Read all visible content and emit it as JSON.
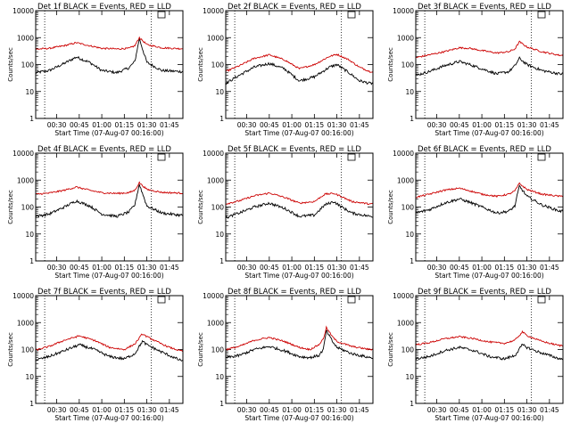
{
  "colors": {
    "events": "#000000",
    "lld": "#cc0000",
    "axes": "#000000",
    "background": "#ffffff"
  },
  "chart_data": [
    {
      "type": "line",
      "title": "Det 1f BLACK = Events, RED = LLD",
      "xlabel": "Start Time (07-Aug-07 00:16:00)",
      "ylabel": "Counts/sec",
      "yscale": "log",
      "ylim": [
        1,
        10000
      ],
      "xlim": [
        "00:16",
        "01:54"
      ],
      "xticks": [
        "00:30",
        "00:45",
        "01:00",
        "01:15",
        "01:30",
        "01:45"
      ],
      "yticks": [
        "1",
        "10",
        "100",
        "1000",
        "10000"
      ],
      "vlines": [
        "00:22",
        "01:33"
      ],
      "x": [
        "00:16",
        "00:25",
        "00:35",
        "00:43",
        "00:52",
        "01:00",
        "01:10",
        "01:18",
        "01:22",
        "01:25",
        "01:30",
        "01:40",
        "01:52"
      ],
      "series": [
        {
          "name": "Events",
          "color": "#000000",
          "values": [
            50,
            60,
            110,
            190,
            120,
            60,
            50,
            75,
            130,
            900,
            120,
            60,
            55
          ]
        },
        {
          "name": "LLD",
          "color": "#cc0000",
          "values": [
            370,
            400,
            500,
            650,
            500,
            400,
            380,
            400,
            500,
            1000,
            550,
            420,
            390
          ]
        }
      ]
    },
    {
      "type": "line",
      "title": "Det 2f BLACK = Events, RED = LLD",
      "xlabel": "Start Time (07-Aug-07 00:16:00)",
      "ylabel": "Counts/sec",
      "yscale": "log",
      "ylim": [
        1,
        10000
      ],
      "xlim": [
        "00:16",
        "01:54"
      ],
      "xticks": [
        "00:30",
        "00:45",
        "01:00",
        "01:15",
        "01:30",
        "01:45"
      ],
      "yticks": [
        "1",
        "10",
        "100",
        "1000",
        "10000"
      ],
      "vlines": [
        "00:22",
        "01:33"
      ],
      "x": [
        "00:16",
        "00:25",
        "00:35",
        "00:45",
        "00:55",
        "01:05",
        "01:15",
        "01:25",
        "01:30",
        "01:38",
        "01:45",
        "01:52"
      ],
      "series": [
        {
          "name": "Events",
          "color": "#000000",
          "values": [
            20,
            40,
            80,
            110,
            70,
            25,
            35,
            80,
            100,
            50,
            25,
            20
          ]
        },
        {
          "name": "LLD",
          "color": "#cc0000",
          "values": [
            55,
            90,
            170,
            230,
            150,
            70,
            100,
            200,
            240,
            150,
            80,
            55
          ]
        }
      ]
    },
    {
      "type": "line",
      "title": "Det 3f BLACK = Events, RED = LLD",
      "xlabel": "Start Time (07-Aug-07 00:16:00)",
      "ylabel": "Counts/sec",
      "yscale": "log",
      "ylim": [
        1,
        10000
      ],
      "xlim": [
        "00:16",
        "01:54"
      ],
      "xticks": [
        "00:30",
        "00:45",
        "01:00",
        "01:15",
        "01:30",
        "01:45"
      ],
      "yticks": [
        "1",
        "10",
        "100",
        "1000",
        "10000"
      ],
      "vlines": [
        "00:22",
        "01:33"
      ],
      "x": [
        "00:16",
        "00:25",
        "00:35",
        "00:45",
        "00:52",
        "01:00",
        "01:10",
        "01:18",
        "01:22",
        "01:25",
        "01:30",
        "01:40",
        "01:52"
      ],
      "series": [
        {
          "name": "Events",
          "color": "#000000",
          "values": [
            40,
            55,
            90,
            130,
            100,
            70,
            45,
            55,
            90,
            170,
            100,
            60,
            45
          ]
        },
        {
          "name": "LLD",
          "color": "#cc0000",
          "values": [
            180,
            230,
            300,
            420,
            400,
            330,
            270,
            300,
            380,
            700,
            450,
            300,
            220
          ]
        }
      ]
    },
    {
      "type": "line",
      "title": "Det 4f BLACK = Events, RED = LLD",
      "xlabel": "Start Time (07-Aug-07 00:16:00)",
      "ylabel": "Counts/sec",
      "yscale": "log",
      "ylim": [
        1,
        10000
      ],
      "xlim": [
        "00:16",
        "01:54"
      ],
      "xticks": [
        "00:30",
        "00:45",
        "01:00",
        "01:15",
        "01:30",
        "01:45"
      ],
      "yticks": [
        "1",
        "10",
        "100",
        "1000",
        "10000"
      ],
      "vlines": [
        "00:22",
        "01:33"
      ],
      "x": [
        "00:16",
        "00:25",
        "00:35",
        "00:43",
        "00:52",
        "01:00",
        "01:10",
        "01:18",
        "01:22",
        "01:25",
        "01:30",
        "01:40",
        "01:52"
      ],
      "series": [
        {
          "name": "Events",
          "color": "#000000",
          "values": [
            45,
            55,
            100,
            170,
            110,
            55,
            45,
            65,
            120,
            700,
            110,
            60,
            50
          ]
        },
        {
          "name": "LLD",
          "color": "#cc0000",
          "values": [
            300,
            330,
            420,
            550,
            420,
            340,
            320,
            340,
            420,
            800,
            450,
            350,
            330
          ]
        }
      ]
    },
    {
      "type": "line",
      "title": "Det 5f BLACK = Events, RED = LLD",
      "xlabel": "Start Time (07-Aug-07 00:16:00)",
      "ylabel": "Counts/sec",
      "yscale": "log",
      "ylim": [
        1,
        10000
      ],
      "xlim": [
        "00:16",
        "01:54"
      ],
      "xticks": [
        "00:30",
        "00:45",
        "01:00",
        "01:15",
        "01:30",
        "01:45"
      ],
      "yticks": [
        "1",
        "10",
        "100",
        "1000",
        "10000"
      ],
      "vlines": [
        "00:22",
        "01:33"
      ],
      "x": [
        "00:16",
        "00:25",
        "00:35",
        "00:45",
        "00:55",
        "01:05",
        "01:15",
        "01:22",
        "01:28",
        "01:32",
        "01:40",
        "01:52"
      ],
      "series": [
        {
          "name": "Events",
          "color": "#000000",
          "values": [
            40,
            60,
            100,
            140,
            90,
            45,
            50,
            120,
            160,
            110,
            60,
            45
          ]
        },
        {
          "name": "LLD",
          "color": "#cc0000",
          "values": [
            130,
            170,
            260,
            330,
            230,
            140,
            160,
            300,
            320,
            260,
            160,
            130
          ]
        }
      ]
    },
    {
      "type": "line",
      "title": "Det 6f BLACK = Events, RED = LLD",
      "xlabel": "Start Time (07-Aug-07 00:16:00)",
      "ylabel": "Counts/sec",
      "yscale": "log",
      "ylim": [
        1,
        10000
      ],
      "xlim": [
        "00:16",
        "01:54"
      ],
      "xticks": [
        "00:30",
        "00:45",
        "01:00",
        "01:15",
        "01:30",
        "01:45"
      ],
      "yticks": [
        "1",
        "10",
        "100",
        "1000",
        "10000"
      ],
      "vlines": [
        "00:22",
        "01:33"
      ],
      "x": [
        "00:16",
        "00:25",
        "00:35",
        "00:45",
        "00:52",
        "01:00",
        "01:10",
        "01:18",
        "01:22",
        "01:25",
        "01:30",
        "01:40",
        "01:52"
      ],
      "series": [
        {
          "name": "Events",
          "color": "#000000",
          "values": [
            60,
            80,
            140,
            200,
            150,
            100,
            60,
            70,
            110,
            600,
            250,
            120,
            70
          ]
        },
        {
          "name": "LLD",
          "color": "#cc0000",
          "values": [
            230,
            300,
            420,
            500,
            400,
            300,
            250,
            300,
            400,
            750,
            450,
            300,
            250
          ]
        }
      ]
    },
    {
      "type": "line",
      "title": "Det 7f BLACK = Events, RED = LLD",
      "xlabel": "Start Time (07-Aug-07 00:16:00)",
      "ylabel": "Counts/sec",
      "yscale": "log",
      "ylim": [
        1,
        10000
      ],
      "xlim": [
        "00:16",
        "01:54"
      ],
      "xticks": [
        "00:30",
        "00:45",
        "01:00",
        "01:15",
        "01:30",
        "01:45"
      ],
      "yticks": [
        "1",
        "10",
        "100",
        "1000",
        "10000"
      ],
      "vlines": [
        "00:22",
        "01:33"
      ],
      "x": [
        "00:16",
        "00:25",
        "00:35",
        "00:45",
        "00:55",
        "01:05",
        "01:15",
        "01:22",
        "01:27",
        "01:30",
        "01:38",
        "01:45",
        "01:52"
      ],
      "series": [
        {
          "name": "Events",
          "color": "#000000",
          "values": [
            40,
            55,
            90,
            150,
            100,
            55,
            45,
            70,
            200,
            150,
            90,
            60,
            40
          ]
        },
        {
          "name": "LLD",
          "color": "#cc0000",
          "values": [
            95,
            130,
            220,
            320,
            220,
            120,
            100,
            160,
            380,
            300,
            180,
            120,
            90
          ]
        }
      ]
    },
    {
      "type": "line",
      "title": "Det 8f BLACK = Events, RED = LLD",
      "xlabel": "Start Time (07-Aug-07 00:16:00)",
      "ylabel": "Counts/sec",
      "yscale": "log",
      "ylim": [
        1,
        10000
      ],
      "xlim": [
        "00:16",
        "01:54"
      ],
      "xticks": [
        "00:30",
        "00:45",
        "01:00",
        "01:15",
        "01:30",
        "01:45"
      ],
      "yticks": [
        "1",
        "10",
        "100",
        "1000",
        "10000"
      ],
      "vlines": [
        "00:22",
        "01:33"
      ],
      "x": [
        "00:16",
        "00:25",
        "00:35",
        "00:45",
        "00:55",
        "01:05",
        "01:12",
        "01:18",
        "01:21",
        "01:23",
        "01:27",
        "01:30",
        "01:40",
        "01:52"
      ],
      "series": [
        {
          "name": "Events",
          "color": "#000000",
          "values": [
            50,
            60,
            100,
            130,
            90,
            55,
            50,
            60,
            100,
            500,
            200,
            120,
            70,
            50
          ]
        },
        {
          "name": "LLD",
          "color": "#cc0000",
          "values": [
            100,
            130,
            220,
            280,
            200,
            120,
            100,
            150,
            250,
            650,
            300,
            200,
            130,
            100
          ]
        }
      ]
    },
    {
      "type": "line",
      "title": "Det 9f BLACK = Events, RED = LLD",
      "xlabel": "Start Time (07-Aug-07 00:16:00)",
      "ylabel": "Counts/sec",
      "yscale": "log",
      "ylim": [
        1,
        10000
      ],
      "xlim": [
        "00:16",
        "01:54"
      ],
      "xticks": [
        "00:30",
        "00:45",
        "01:00",
        "01:15",
        "01:30",
        "01:45"
      ],
      "yticks": [
        "1",
        "10",
        "100",
        "1000",
        "10000"
      ],
      "vlines": [
        "00:22",
        "01:33"
      ],
      "x": [
        "00:16",
        "00:25",
        "00:35",
        "00:45",
        "00:55",
        "01:05",
        "01:15",
        "01:22",
        "01:27",
        "01:30",
        "01:38",
        "01:45",
        "01:52"
      ],
      "series": [
        {
          "name": "Events",
          "color": "#000000",
          "values": [
            45,
            55,
            90,
            120,
            90,
            55,
            45,
            60,
            150,
            120,
            80,
            60,
            45
          ]
        },
        {
          "name": "LLD",
          "color": "#cc0000",
          "values": [
            150,
            180,
            250,
            300,
            250,
            190,
            170,
            220,
            450,
            330,
            220,
            170,
            140
          ]
        }
      ]
    }
  ]
}
